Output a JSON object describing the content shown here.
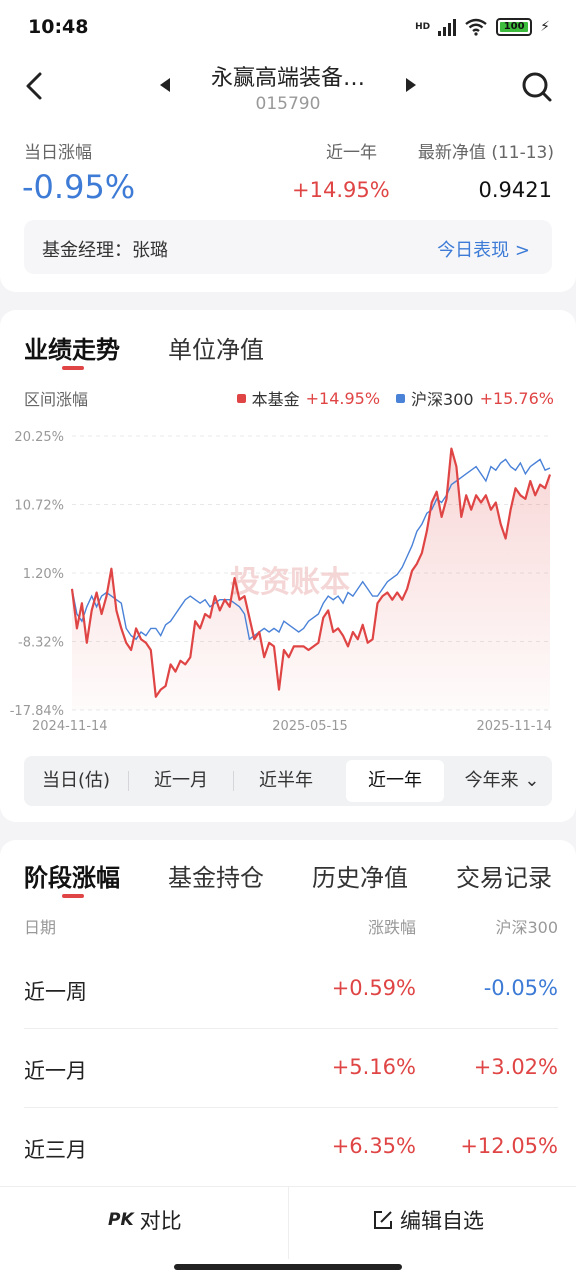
{
  "status": {
    "time": "10:48",
    "hd": "HD",
    "battery": "100"
  },
  "nav": {
    "title": "永赢高端装备…",
    "code": "015790"
  },
  "summary": {
    "day_change_label": "当日涨幅",
    "day_change": "-0.95%",
    "year_label": "近一年",
    "year_change": "+14.95%",
    "nav_label": "最新净值 (11-13)",
    "nav_value": "0.9421",
    "manager_label": "基金经理：张璐",
    "today_link": "今日表现 >"
  },
  "chart_tabs": [
    {
      "label": "业绩走势",
      "active": true
    },
    {
      "label": "单位净值",
      "active": false
    }
  ],
  "chart_header": {
    "range_label": "区间涨幅",
    "legend": [
      {
        "name": "本基金",
        "value": "+14.95%",
        "color": "#e04545"
      },
      {
        "name": "沪深300",
        "value": "+15.76%",
        "color": "#4a82d8"
      }
    ]
  },
  "chart_data": {
    "type": "line",
    "y_ticks": [
      "20.25%",
      "10.72%",
      "1.20%",
      "-8.32%",
      "-17.84%"
    ],
    "x_ticks": [
      "2024-11-14",
      "2025-05-15",
      "2025-11-14"
    ],
    "ylim": [
      -17.84,
      20.25
    ],
    "watermark": "投资账本",
    "series": [
      {
        "name": "本基金",
        "color": "#e04545",
        "values": [
          -1.0,
          -6.5,
          -3.0,
          -8.5,
          -4.0,
          -1.5,
          -4.5,
          -2.0,
          1.8,
          -4.0,
          -6.5,
          -8.5,
          -9.5,
          -6.5,
          -8.0,
          -8.5,
          -9.5,
          -16.0,
          -15.0,
          -14.5,
          -11.5,
          -12.5,
          -11.0,
          -11.5,
          -10.5,
          -5.5,
          -6.5,
          -4.5,
          -5.0,
          -2.0,
          -4.0,
          -2.5,
          -3.5,
          0.5,
          -2.5,
          -2.0,
          -5.0,
          -8.0,
          -7.0,
          -10.5,
          -8.5,
          -9.0,
          -15.0,
          -9.5,
          -10.5,
          -9.0,
          -9.0,
          -9.0,
          -9.5,
          -9.0,
          -8.5,
          -5.0,
          -4.0,
          -7.0,
          -6.5,
          -7.5,
          -9.0,
          -7.0,
          -8.0,
          -6.0,
          -8.5,
          -8.0,
          -3.0,
          -2.0,
          -1.5,
          -2.5,
          -1.5,
          -2.5,
          -1.0,
          1.5,
          2.5,
          4.0,
          7.0,
          11.0,
          12.5,
          9.0,
          11.5,
          18.5,
          16.0,
          9.0,
          12.0,
          10.0,
          12.0,
          11.0,
          12.0,
          10.0,
          11.0,
          8.0,
          6.0,
          10.0,
          13.0,
          12.0,
          11.5,
          14.0,
          12.0,
          13.5,
          13.0,
          14.9
        ]
      },
      {
        "name": "沪深300",
        "color": "#4a82d8",
        "values": [
          -1.0,
          -4.5,
          -5.5,
          -3.5,
          -2.0,
          -3.5,
          -2.0,
          -1.5,
          -2.0,
          -2.5,
          -3.0,
          -6.5,
          -7.5,
          -8.0,
          -7.0,
          -7.5,
          -6.5,
          -6.5,
          -7.5,
          -6.0,
          -5.5,
          -4.5,
          -3.5,
          -2.5,
          -2.0,
          -2.5,
          -3.0,
          -2.5,
          -3.5,
          -3.0,
          -2.5,
          -2.5,
          -2.5,
          -3.0,
          -3.5,
          -4.5,
          -8.0,
          -7.5,
          -7.0,
          -6.5,
          -7.0,
          -6.5,
          -7.0,
          -5.5,
          -6.0,
          -6.5,
          -7.0,
          -6.5,
          -5.5,
          -5.0,
          -4.5,
          -3.0,
          -2.0,
          -2.5,
          -2.0,
          -3.0,
          -1.5,
          -2.0,
          -1.0,
          0.0,
          -1.0,
          -2.0,
          -2.0,
          -1.0,
          0.0,
          0.5,
          1.0,
          2.0,
          3.5,
          5.0,
          7.0,
          8.0,
          9.5,
          10.0,
          11.5,
          11.0,
          12.0,
          13.5,
          14.0,
          14.5,
          15.0,
          15.5,
          16.0,
          15.0,
          14.0,
          16.0,
          15.5,
          16.5,
          17.0,
          16.0,
          15.5,
          16.5,
          15.0,
          16.0,
          16.5,
          17.0,
          15.5,
          15.8
        ]
      }
    ]
  },
  "periods": [
    {
      "label": "当日(估)",
      "active": false
    },
    {
      "label": "近一月",
      "active": false
    },
    {
      "label": "近半年",
      "active": false
    },
    {
      "label": "近一年",
      "active": true
    },
    {
      "label": "今年来 ⌄",
      "active": false
    }
  ],
  "stage_tabs": [
    {
      "label": "阶段涨幅",
      "active": true
    },
    {
      "label": "基金持仓",
      "active": false
    },
    {
      "label": "历史净值",
      "active": false
    },
    {
      "label": "交易记录",
      "active": false
    }
  ],
  "stage_table": {
    "headers": [
      "日期",
      "涨跌幅",
      "沪深300"
    ],
    "rows": [
      {
        "period": "近一周",
        "change": "+0.59%",
        "index": "-0.05%"
      },
      {
        "period": "近一月",
        "change": "+5.16%",
        "index": "+3.02%"
      },
      {
        "period": "近三月",
        "change": "+6.35%",
        "index": "+12.05%"
      }
    ]
  },
  "bottom": {
    "compare": "对比",
    "edit": "编辑自选"
  },
  "colors": {
    "up": "#e04545",
    "down": "#3d7bd6"
  }
}
